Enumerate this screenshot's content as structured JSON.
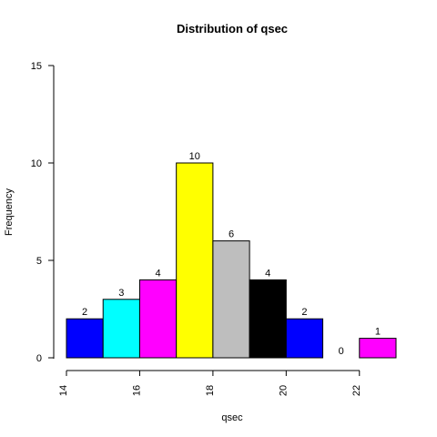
{
  "chart_data": {
    "type": "bar",
    "title": "Distribution of qsec",
    "xlabel": "qsec",
    "ylabel": "Frequency",
    "bins": [
      {
        "start": 14,
        "end": 15,
        "count": 2,
        "color": "#0000FF"
      },
      {
        "start": 15,
        "end": 16,
        "count": 3,
        "color": "#00FFFF"
      },
      {
        "start": 16,
        "end": 17,
        "count": 4,
        "color": "#FF00FF"
      },
      {
        "start": 17,
        "end": 18,
        "count": 10,
        "color": "#FFFF00"
      },
      {
        "start": 18,
        "end": 19,
        "count": 6,
        "color": "#BEBEBE"
      },
      {
        "start": 19,
        "end": 20,
        "count": 4,
        "color": "#000000"
      },
      {
        "start": 20,
        "end": 21,
        "count": 2,
        "color": "#0000FF"
      },
      {
        "start": 21,
        "end": 22,
        "count": 0,
        "color": "#00FFFF"
      },
      {
        "start": 22,
        "end": 23,
        "count": 1,
        "color": "#FF00FF"
      }
    ],
    "x_ticks": [
      14,
      16,
      18,
      20,
      22
    ],
    "y_ticks": [
      0,
      5,
      10,
      15
    ],
    "xlim": [
      14,
      23
    ],
    "ylim": [
      0,
      15
    ],
    "grid": false,
    "legend": "none"
  }
}
